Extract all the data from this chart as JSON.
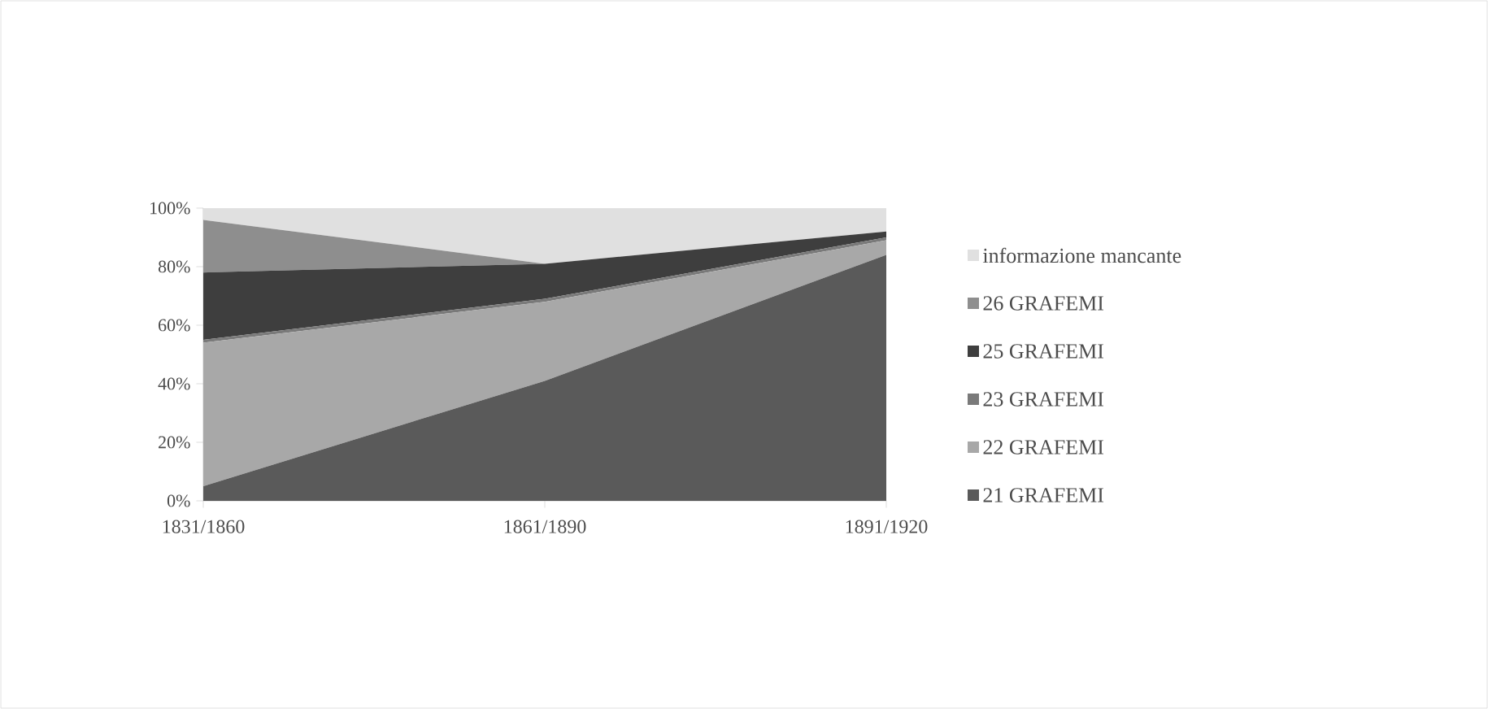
{
  "chart_data": {
    "type": "area",
    "stacked": true,
    "categories": [
      "1831/1860",
      "1861/1890",
      "1891/1920"
    ],
    "series": [
      {
        "name": "21 GRAFEMI",
        "color": "#5a5a5a",
        "values": [
          5,
          41,
          84
        ]
      },
      {
        "name": "22 GRAFEMI",
        "color": "#a8a8a8",
        "values": [
          49,
          27,
          5
        ]
      },
      {
        "name": "23 GRAFEMI",
        "color": "#7a7a7a",
        "values": [
          1,
          1,
          1
        ]
      },
      {
        "name": "25 GRAFEMI",
        "color": "#3e3e3e",
        "values": [
          23,
          12,
          2
        ]
      },
      {
        "name": "26 GRAFEMI",
        "color": "#8e8e8e",
        "values": [
          18,
          0,
          0
        ]
      },
      {
        "name": "informazione mancante",
        "color": "#e0e0e0",
        "values": [
          4,
          19,
          8
        ]
      }
    ],
    "ylim": [
      0,
      100
    ],
    "yticks": [
      {
        "value": 0,
        "label": "0%"
      },
      {
        "value": 20,
        "label": "20%"
      },
      {
        "value": 40,
        "label": "40%"
      },
      {
        "value": 60,
        "label": "60%"
      },
      {
        "value": 80,
        "label": "80%"
      },
      {
        "value": 100,
        "label": "100%"
      }
    ],
    "legend": "right",
    "grid": false
  }
}
